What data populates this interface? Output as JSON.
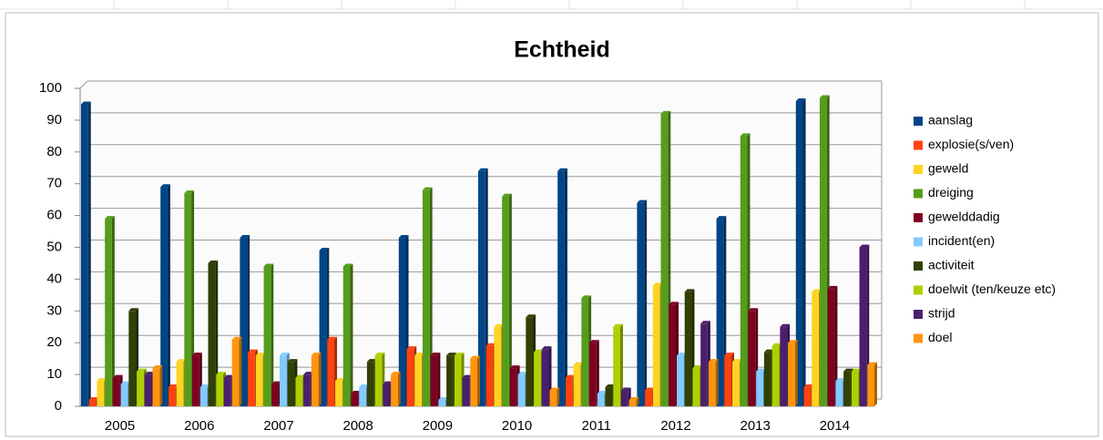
{
  "chart_data": {
    "type": "bar",
    "title": "Echtheid",
    "categories": [
      "2005",
      "2006",
      "2007",
      "2008",
      "2009",
      "2010",
      "2011",
      "2012",
      "2013",
      "2014"
    ],
    "ylim": [
      0,
      100
    ],
    "yticks": [
      0,
      10,
      20,
      30,
      40,
      50,
      60,
      70,
      80,
      90,
      100
    ],
    "grid": true,
    "legend": "right",
    "series": [
      {
        "name": "aanslag",
        "color": "#004586",
        "values": [
          95,
          69,
          53,
          49,
          53,
          74,
          74,
          64,
          59,
          96
        ]
      },
      {
        "name": "explosie(s/ven)",
        "color": "#ff420e",
        "values": [
          2,
          6,
          17,
          21,
          18,
          19,
          9,
          5,
          16,
          6
        ]
      },
      {
        "name": "geweld",
        "color": "#ffd320",
        "values": [
          8,
          14,
          16,
          8,
          16,
          25,
          13,
          38,
          14,
          36
        ]
      },
      {
        "name": "dreiging",
        "color": "#579d1c",
        "values": [
          59,
          67,
          44,
          44,
          68,
          66,
          34,
          92,
          85,
          97
        ]
      },
      {
        "name": "gewelddadig",
        "color": "#7e0021",
        "values": [
          9,
          16,
          7,
          4,
          16,
          12,
          20,
          32,
          30,
          37
        ]
      },
      {
        "name": "incident(en)",
        "color": "#83caff",
        "values": [
          7,
          6,
          16,
          6,
          2,
          10,
          4,
          16,
          11,
          8
        ]
      },
      {
        "name": "activiteit",
        "color": "#314004",
        "values": [
          30,
          45,
          14,
          14,
          16,
          28,
          6,
          36,
          17,
          11
        ]
      },
      {
        "name": "doelwit (ten/keuze etc)",
        "color": "#aecf00",
        "values": [
          11,
          10,
          9,
          16,
          16,
          17,
          25,
          12,
          19,
          11
        ]
      },
      {
        "name": "strijd",
        "color": "#4b1f6f",
        "values": [
          10,
          9,
          10,
          7,
          9,
          18,
          5,
          26,
          25,
          50
        ]
      },
      {
        "name": "doel",
        "color": "#ff950e",
        "values": [
          12,
          21,
          16,
          10,
          15,
          5,
          2,
          14,
          20,
          13
        ]
      }
    ]
  }
}
